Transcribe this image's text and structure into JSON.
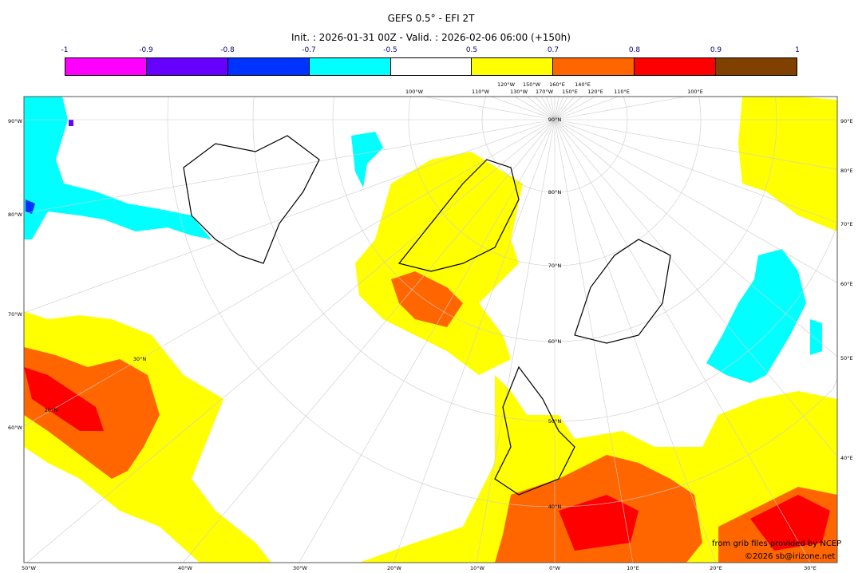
{
  "title": "GEFS 0.5° - EFI 2T",
  "subtitle": "Init. : 2026-01-31 00Z - Valid. : 2026-02-06 06:00 (+150h)",
  "colorbar": {
    "ticks": [
      "-1",
      "-0.9",
      "-0.8",
      "-0.7",
      "-0.5",
      "0.5",
      "0.7",
      "0.8",
      "0.9",
      "1"
    ],
    "colors": [
      "#ff00ff",
      "#6600ff",
      "#0033ff",
      "#00ffff",
      "#ffffff",
      "#ffff00",
      "#ff6600",
      "#ff0000",
      "#804000"
    ]
  },
  "map": {
    "left_labels": [
      "90°W",
      "80°W",
      "70°W",
      "60°W"
    ],
    "right_labels": [
      "90°E",
      "80°E",
      "70°E",
      "60°E",
      "50°E",
      "40°E"
    ],
    "bottom_labels": [
      "50°W",
      "40°W",
      "30°W",
      "20°W",
      "10°W",
      "0°W",
      "10°E",
      "20°E",
      "30°E"
    ],
    "top_labels": [
      "100°W",
      "110°W",
      "120°W",
      "130°W",
      "150°W",
      "170°W",
      "160°E",
      "150°E",
      "140°E",
      "120°E",
      "110°E",
      "100°E"
    ],
    "parallel_labels": [
      "90°N",
      "80°N",
      "70°N",
      "60°N",
      "50°N",
      "40°N",
      "30°N",
      "20°N"
    ]
  },
  "credits": {
    "source": "from grib files provided by NCEP",
    "copyright": "©2026 sb@irizone.net"
  }
}
